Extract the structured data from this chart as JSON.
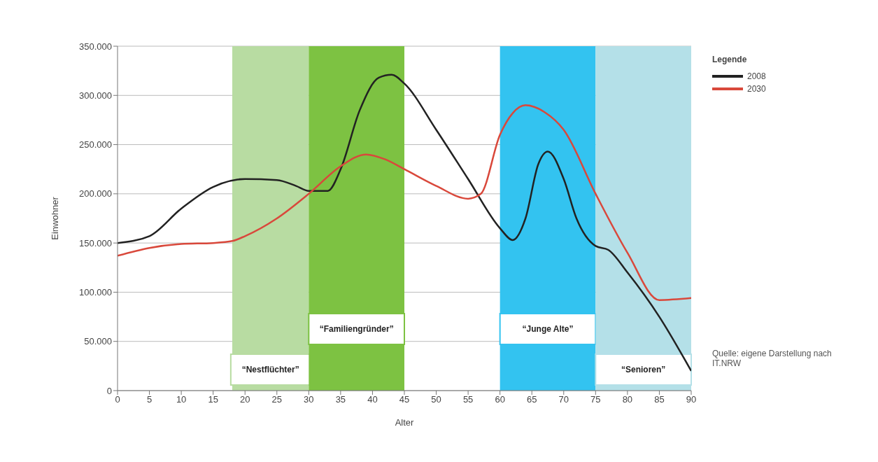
{
  "chart_data": {
    "type": "line",
    "xlabel": "Alter",
    "ylabel": "Einwohner",
    "legend_title": "Legende",
    "legend": "top right",
    "grid": "y",
    "marker": "none",
    "line_style": "solid",
    "xlim": [
      0,
      90
    ],
    "xticks": [
      0,
      5,
      10,
      15,
      20,
      25,
      30,
      35,
      40,
      45,
      50,
      55,
      60,
      65,
      70,
      75,
      80,
      85,
      90
    ],
    "ylim": [
      0,
      350000
    ],
    "yticks": [
      0,
      {
        "value": 50000,
        "label": "50.000"
      },
      {
        "value": 100000,
        "label": "100.000"
      },
      {
        "value": 150000,
        "label": "150.000"
      },
      {
        "value": 200000,
        "label": "200.000"
      },
      {
        "value": 250000,
        "label": "250.000"
      },
      {
        "value": 300000,
        "label": "300.000"
      },
      {
        "value": 350000,
        "label": "350.000"
      }
    ],
    "series": [
      {
        "name": "2008",
        "color": "#222222",
        "x": [
          0,
          5,
          10,
          15,
          20,
          25,
          28,
          30,
          33,
          35,
          38,
          41,
          43,
          45,
          50,
          55,
          60,
          62,
          64,
          66,
          67.5,
          70,
          72,
          75,
          77,
          80,
          85,
          90
        ],
        "values": [
          150000,
          157000,
          185000,
          207000,
          215000,
          214000,
          208000,
          203000,
          203000,
          225000,
          285000,
          318000,
          321000,
          312000,
          265000,
          215000,
          165000,
          153000,
          175000,
          230000,
          243000,
          215000,
          175000,
          147000,
          143000,
          120000,
          75000,
          20000
        ]
      },
      {
        "name": "2030",
        "color": "#d9483b",
        "x": [
          0,
          5,
          10,
          15,
          18,
          20,
          25,
          30,
          35,
          39,
          42,
          45,
          50,
          55,
          57,
          60,
          62,
          64,
          67,
          70,
          75,
          80,
          85,
          90
        ],
        "values": [
          137000,
          145000,
          149000,
          150000,
          152000,
          157000,
          175000,
          200000,
          228000,
          240000,
          235000,
          225000,
          208000,
          195000,
          200000,
          260000,
          282000,
          290000,
          283000,
          265000,
          200000,
          140000,
          92000,
          94000
        ]
      }
    ],
    "bands": [
      {
        "axis": "x",
        "from": 18,
        "to": 30,
        "label": "“Nestflüchter”",
        "color": "#b8dca2"
      },
      {
        "axis": "x",
        "from": 30,
        "to": 45,
        "label": "“Familiengründer”",
        "color": "#7dc242"
      },
      {
        "axis": "x",
        "from": 60,
        "to": 75,
        "label": "“Junge Alte”",
        "color": "#33c3f0"
      },
      {
        "axis": "x",
        "from": 75,
        "to": 90,
        "label": "“Senioren”",
        "color": "#b4e0e8"
      }
    ],
    "annotations": [
      "Quelle: eigene Darstellung nach IT.NRW"
    ]
  }
}
